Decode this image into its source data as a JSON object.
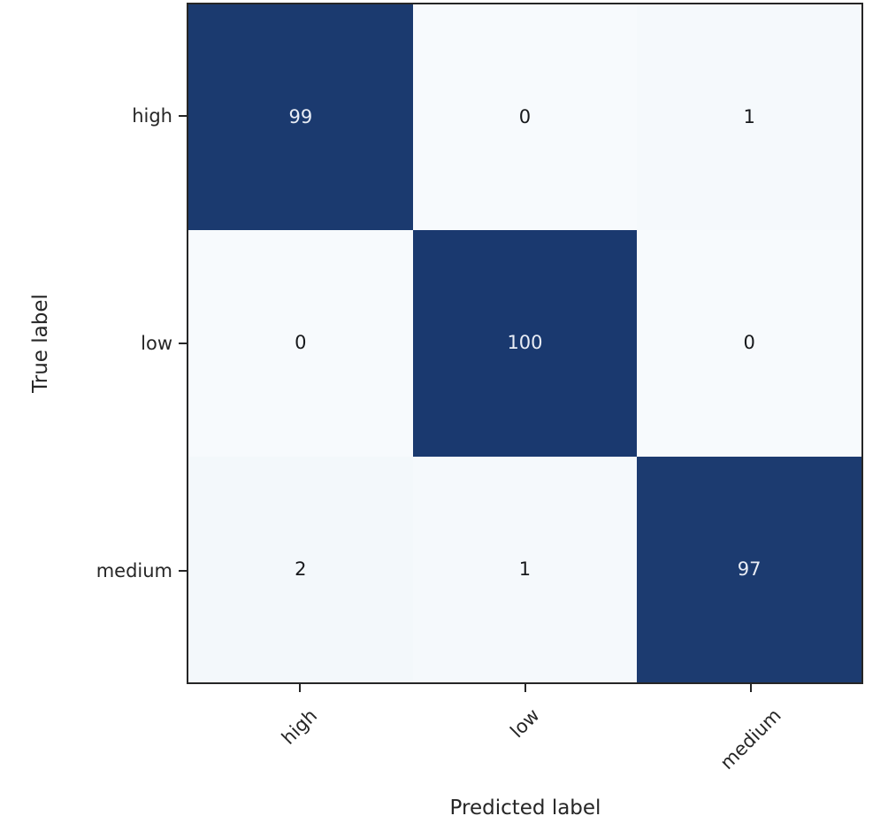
{
  "chart_data": {
    "type": "heatmap",
    "subtype": "confusion-matrix",
    "title": "",
    "xlabel": "Predicted label",
    "ylabel": "True label",
    "x_categories": [
      "high",
      "low",
      "medium"
    ],
    "y_categories": [
      "high",
      "low",
      "medium"
    ],
    "matrix": [
      [
        99,
        0,
        1
      ],
      [
        0,
        100,
        0
      ],
      [
        2,
        1,
        97
      ]
    ],
    "value_range": [
      0,
      100
    ],
    "colormap": "Blues",
    "legend": "none",
    "grid": "off",
    "colors": {
      "cell_backgrounds": [
        [
          "#1b3a6f",
          "#f7fafd",
          "#f5f9fc"
        ],
        [
          "#f7fafd",
          "#1a396f",
          "#f7fafd"
        ],
        [
          "#f3f8fb",
          "#f5f9fc",
          "#1c3b70"
        ]
      ],
      "cell_text": [
        [
          "#e9edf5",
          "#17191c",
          "#17191c"
        ],
        [
          "#17191c",
          "#e9edf5",
          "#17191c"
        ],
        [
          "#17191c",
          "#17191c",
          "#e9edf5"
        ]
      ],
      "axis": "#262626",
      "background": "#ffffff"
    }
  }
}
